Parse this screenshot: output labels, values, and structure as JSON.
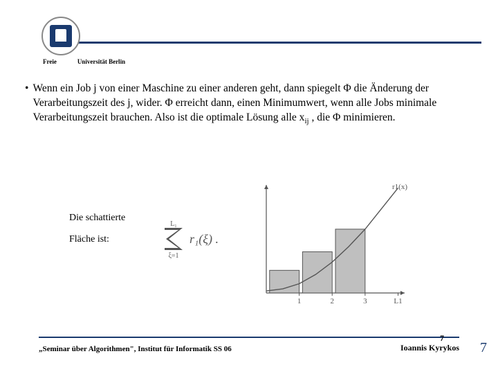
{
  "header": {
    "uni_left": "Freie",
    "uni_right": "Universität  Berlin",
    "line_color": "#1a3a6e",
    "logo_border": "#888888",
    "logo_fill": "#1a3a6e"
  },
  "content": {
    "bullet_text_part1": "Wenn ein Job j von einer Maschine zu einer anderen geht, dann spiegelt Φ die Änderung der Verarbeitungszeit des j, wider. Φ erreicht dann, einen Minimumwert, wenn alle Jobs minimale Verarbeitungszeit brauchen. Also ist die optimale Lösung alle x",
    "bullet_sub": "ij",
    "bullet_text_part2": " , die Φ minimieren."
  },
  "caption": {
    "line1": "Die schattierte",
    "line2": "Fläche ist:"
  },
  "formula": {
    "sigma_upper": "L₁",
    "sigma_lower": "ξ=1",
    "body": "r₁(ξ) .",
    "font_color": "#555555"
  },
  "chart": {
    "type": "bar+curve",
    "curve_label": "r1(x)",
    "bars": [
      {
        "x": 1,
        "height": 0.22
      },
      {
        "x": 2,
        "height": 0.4
      },
      {
        "x": 3,
        "height": 0.62
      }
    ],
    "bar_width": 0.9,
    "bar_fill": "#bfbfbf",
    "bar_stroke": "#555555",
    "axis_color": "#555555",
    "xticks": [
      "1",
      "2",
      "3",
      "L1"
    ],
    "xlim": [
      0,
      4.2
    ],
    "ylim": [
      0,
      1.05
    ],
    "curve_points": [
      [
        0,
        0.02
      ],
      [
        0.5,
        0.04
      ],
      [
        1.0,
        0.09
      ],
      [
        1.5,
        0.18
      ],
      [
        2.0,
        0.3
      ],
      [
        2.5,
        0.45
      ],
      [
        3.0,
        0.62
      ],
      [
        3.5,
        0.82
      ],
      [
        4.0,
        1.02
      ]
    ],
    "label_fontsize": 11,
    "label_color": "#555555"
  },
  "footer": {
    "left": "„Seminar über Algorithmen\", Institut für Informatik SS 06",
    "right_name": "Ioannis Kyrykos",
    "page_small": "7",
    "page_big": "7",
    "line_color": "#1a3a6e"
  }
}
